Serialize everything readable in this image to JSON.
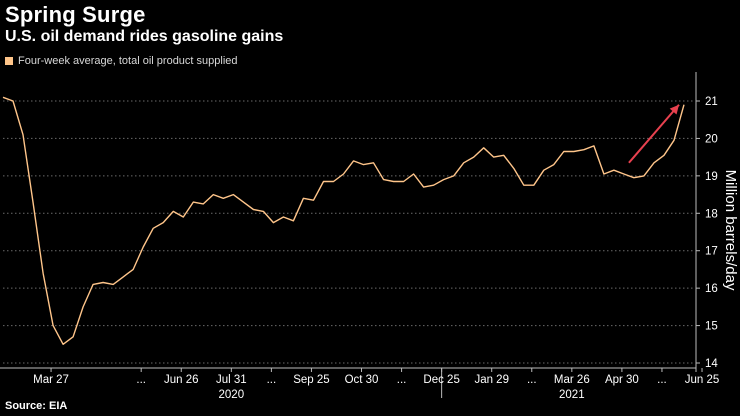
{
  "header": {
    "title": "Spring Surge",
    "subtitle": "U.S. oil demand rides gasoline gains"
  },
  "legend": {
    "label": "Four-week average, total oil product supplied",
    "swatch_color": "#ffc58a"
  },
  "footer": {
    "source": "Source: EIA"
  },
  "colors": {
    "background": "#000000",
    "line": "#ffc58a",
    "arrow": "#e8414f",
    "grid": "#6a6a6a"
  },
  "chart_data": {
    "type": "line",
    "title": "Spring Surge",
    "subtitle": "U.S. oil demand rides gasoline gains",
    "xlabel": "",
    "ylabel": "Million barrels/day",
    "ylim": [
      14,
      21.7
    ],
    "yticks": [
      14,
      15,
      16,
      17,
      18,
      19,
      20,
      21
    ],
    "grid": true,
    "legend_position": "top-left",
    "x_tick_labels": [
      {
        "label": "Mar 27",
        "index": 4
      },
      {
        "label": "...",
        "index": 13
      },
      {
        "label": "Jun 26",
        "index": 17
      },
      {
        "label": "Jul 31",
        "index": 22
      },
      {
        "label": "...",
        "index": 26
      },
      {
        "label": "Sep 25",
        "index": 30
      },
      {
        "label": "Oct 30",
        "index": 35
      },
      {
        "label": "...",
        "index": 39
      },
      {
        "label": "Dec 25",
        "index": 43
      },
      {
        "label": "Jan 29",
        "index": 48
      },
      {
        "label": "...",
        "index": 52
      },
      {
        "label": "Mar 26",
        "index": 56
      },
      {
        "label": "Apr 30",
        "index": 61
      },
      {
        "label": "...",
        "index": 65
      },
      {
        "label": "Jun 25",
        "index": 69
      }
    ],
    "year_labels": [
      {
        "label": "2020",
        "center_index": 22
      },
      {
        "label": "2021",
        "center_index": 56
      }
    ],
    "year_divider_index": 43,
    "series": [
      {
        "values": [
          21.1,
          21.0,
          20.1,
          18.3,
          16.4,
          15.0,
          14.5,
          14.7,
          15.5,
          16.1,
          16.15,
          16.1,
          16.3,
          16.5,
          17.1,
          17.6,
          17.75,
          18.05,
          17.9,
          18.3,
          18.25,
          18.5,
          18.4,
          18.5,
          18.3,
          18.1,
          18.05,
          17.75,
          17.9,
          17.8,
          18.4,
          18.35,
          18.85,
          18.85,
          19.05,
          19.4,
          19.3,
          19.35,
          18.9,
          18.85,
          18.85,
          19.05,
          18.7,
          18.75,
          18.9,
          19.0,
          19.35,
          19.5,
          19.75,
          19.5,
          19.55,
          19.2,
          18.75,
          18.75,
          19.15,
          19.3,
          19.65,
          19.65,
          19.7,
          19.8,
          19.05,
          19.15,
          19.05,
          18.95,
          19.0,
          19.35,
          19.55,
          19.95,
          20.9
        ]
      }
    ],
    "annotations": [
      {
        "type": "arrow",
        "from_index": 62.5,
        "from_value": 19.35,
        "to_index": 67.5,
        "to_value": 20.9,
        "color": "#e8414f"
      }
    ]
  }
}
